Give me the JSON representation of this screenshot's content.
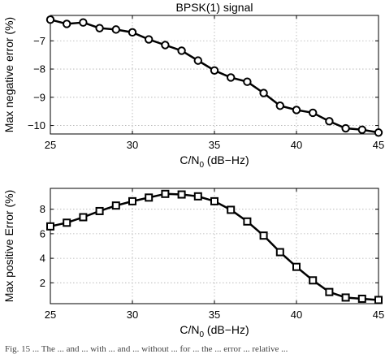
{
  "chart_data": [
    {
      "type": "line",
      "title": "BPSK(1) signal",
      "xlabel": "C/N0 (dB−Hz)",
      "ylabel": "Max negative error (%)",
      "xlim": [
        25,
        45
      ],
      "ylim": [
        -10.3,
        -6.1
      ],
      "xticks": [
        25,
        30,
        35,
        40,
        45
      ],
      "yticks": [
        -10,
        -9,
        -8,
        -7
      ],
      "marker": "circle",
      "grid": true,
      "series": [
        {
          "x": [
            25,
            26,
            27,
            28,
            29,
            30,
            31,
            32,
            33,
            34,
            35,
            36,
            37,
            38,
            39,
            40,
            41,
            42,
            43,
            44,
            45
          ],
          "y": [
            -6.25,
            -6.4,
            -6.35,
            -6.55,
            -6.6,
            -6.7,
            -6.95,
            -7.15,
            -7.35,
            -7.7,
            -8.05,
            -8.3,
            -8.45,
            -8.85,
            -9.3,
            -9.45,
            -9.55,
            -9.85,
            -10.1,
            -10.15,
            -10.25
          ]
        }
      ]
    },
    {
      "type": "line",
      "title": "",
      "xlabel": "C/N0 (dB−Hz)",
      "ylabel": "Max positive Error (%)",
      "xlim": [
        25,
        45
      ],
      "ylim": [
        0.3,
        9.7
      ],
      "xticks": [
        25,
        30,
        35,
        40,
        45
      ],
      "yticks": [
        2,
        4,
        6,
        8
      ],
      "marker": "square",
      "grid": true,
      "series": [
        {
          "x": [
            25,
            26,
            27,
            28,
            29,
            30,
            31,
            32,
            33,
            34,
            35,
            36,
            37,
            38,
            39,
            40,
            41,
            42,
            43,
            44,
            45
          ],
          "y": [
            6.6,
            6.9,
            7.35,
            7.85,
            8.3,
            8.65,
            8.95,
            9.25,
            9.2,
            9.05,
            8.65,
            7.95,
            7.0,
            5.85,
            4.5,
            3.3,
            2.2,
            1.25,
            0.8,
            0.7,
            0.6
          ]
        }
      ]
    }
  ],
  "caption": "Fig. 15 ... The ... and ... with ... and ... without ... for ... the ... error ... relative ..."
}
